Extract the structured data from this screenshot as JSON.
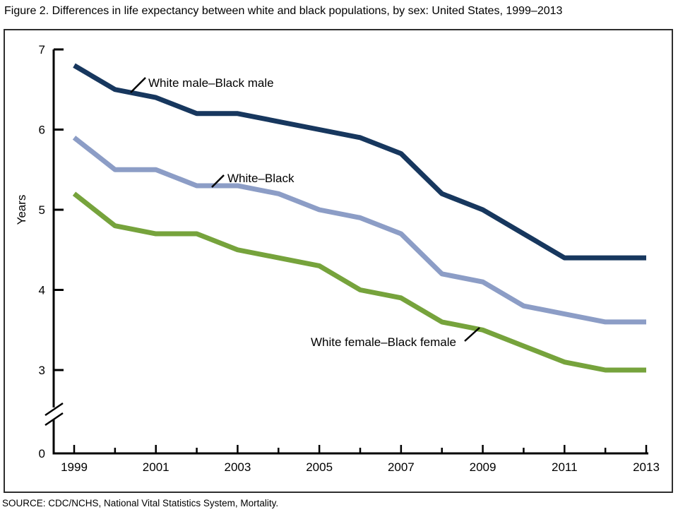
{
  "title": "Figure 2. Differences in life expectancy between white and black populations, by sex: United States, 1999–2013",
  "source": "SOURCE: CDC/NCHS, National Vital Statistics System, Mortality.",
  "chart_data": {
    "type": "line",
    "title": "Figure 2. Differences in life expectancy between white and black populations, by sex: United States, 1999–2013",
    "xlabel": "",
    "ylabel": "Years",
    "x": [
      1999,
      2000,
      2001,
      2002,
      2003,
      2004,
      2005,
      2006,
      2007,
      2008,
      2009,
      2010,
      2011,
      2012,
      2013
    ],
    "x_labeled_ticks": [
      1999,
      2001,
      2003,
      2005,
      2007,
      2009,
      2011,
      2013
    ],
    "y_ticks": [
      7,
      6,
      5,
      4,
      3
    ],
    "y_origin_label": "0",
    "axis_break": true,
    "ylim": [
      3,
      7
    ],
    "grid": false,
    "legend_position": "inline-annotations",
    "series": [
      {
        "name": "White male–Black male",
        "color": "#17375E",
        "values": [
          6.8,
          6.5,
          6.4,
          6.2,
          6.2,
          6.1,
          6.0,
          5.9,
          5.7,
          5.2,
          5.0,
          4.7,
          4.4,
          4.4,
          4.4
        ]
      },
      {
        "name": "White–Black",
        "color": "#8C9DC6",
        "values": [
          5.9,
          5.5,
          5.5,
          5.3,
          5.3,
          5.2,
          5.0,
          4.9,
          4.7,
          4.2,
          4.1,
          3.8,
          3.7,
          3.6,
          3.6
        ]
      },
      {
        "name": "White female–Black female",
        "color": "#76A33C",
        "values": [
          5.2,
          4.8,
          4.7,
          4.7,
          4.5,
          4.4,
          4.3,
          4.0,
          3.9,
          3.6,
          3.5,
          3.3,
          3.1,
          3.0,
          3.0
        ]
      }
    ],
    "annotations": [
      {
        "series": 0,
        "label": "White male–Black male"
      },
      {
        "series": 1,
        "label": "White–Black"
      },
      {
        "series": 2,
        "label": "White female–Black female"
      }
    ]
  }
}
